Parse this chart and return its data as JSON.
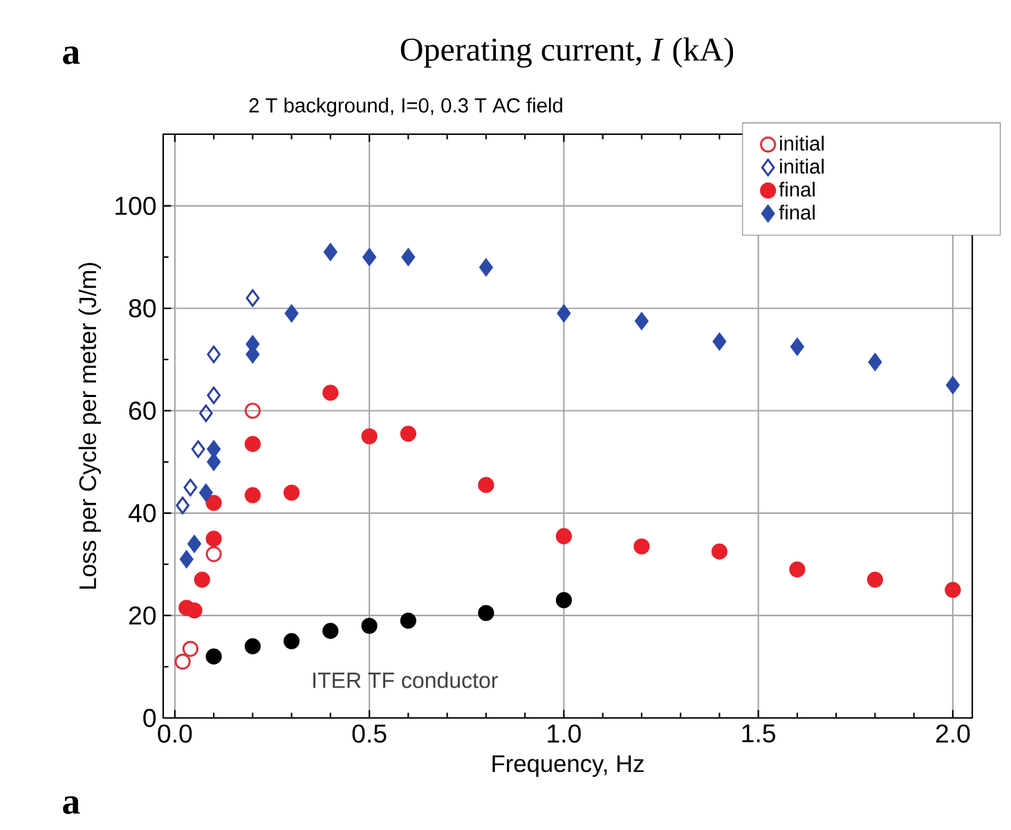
{
  "chart_data": {
    "type": "scatter",
    "title": "2 T background, I=0, 0.3 T AC field",
    "xlabel": "Frequency, Hz",
    "ylabel": "Loss per Cycle per meter (J/m)",
    "annotations": [
      "a",
      "Operating current, *I* (kA)",
      "a",
      "ITER TF conductor"
    ],
    "xlim": [
      -0.03,
      2.05
    ],
    "ylim": [
      0,
      114
    ],
    "xticks": [
      {
        "value": 0,
        "label": "0.0"
      },
      {
        "value": 0.5,
        "label": "0.5"
      },
      {
        "value": 1,
        "label": "1.0"
      },
      {
        "value": 1.5,
        "label": "1.5"
      },
      {
        "value": 2,
        "label": "2.0"
      }
    ],
    "yticks": [
      0,
      20,
      40,
      60,
      80,
      100
    ],
    "grid": true,
    "legend": "top right",
    "series": [
      {
        "name": "initial",
        "color": "#d8343c",
        "marker": "circle-open",
        "x": [
          0.02,
          0.04,
          0.1,
          0.2
        ],
        "values": [
          11,
          13.5,
          32,
          60
        ]
      },
      {
        "name": "initial",
        "color": "#2b3f9a",
        "marker": "diamond-open",
        "x": [
          0.02,
          0.04,
          0.06,
          0.08,
          0.1,
          0.1,
          0.2
        ],
        "values": [
          41.5,
          45,
          52.5,
          59.5,
          63,
          71,
          82
        ]
      },
      {
        "name": "final",
        "color": "#e8202a",
        "marker": "circle",
        "x": [
          0.03,
          0.05,
          0.07,
          0.1,
          0.1,
          0.2,
          0.2,
          0.3,
          0.4,
          0.5,
          0.6,
          0.8,
          1.0,
          1.2,
          1.4,
          1.6,
          1.8,
          2.0
        ],
        "values": [
          21.5,
          21,
          27,
          35,
          42,
          43.5,
          53.5,
          44,
          63.5,
          55,
          55.5,
          45.5,
          35.5,
          33.5,
          32.5,
          29,
          27,
          25
        ]
      },
      {
        "name": "final",
        "color": "#2b4aa8",
        "marker": "diamond",
        "x": [
          0.03,
          0.05,
          0.08,
          0.1,
          0.1,
          0.2,
          0.2,
          0.3,
          0.4,
          0.5,
          0.6,
          0.8,
          1.0,
          1.2,
          1.4,
          1.6,
          1.8,
          2.0
        ],
        "values": [
          31,
          34,
          44,
          50,
          52.5,
          71,
          73,
          79,
          91,
          90,
          90,
          88,
          79,
          77.5,
          73.5,
          72.5,
          69.5,
          65
        ]
      },
      {
        "color": "#000000",
        "marker": "circle",
        "x": [
          0.1,
          0.2,
          0.3,
          0.4,
          0.5,
          0.6,
          0.8,
          1.0
        ],
        "values": [
          12,
          14,
          15,
          17,
          18,
          19,
          20.5,
          23
        ]
      }
    ]
  }
}
